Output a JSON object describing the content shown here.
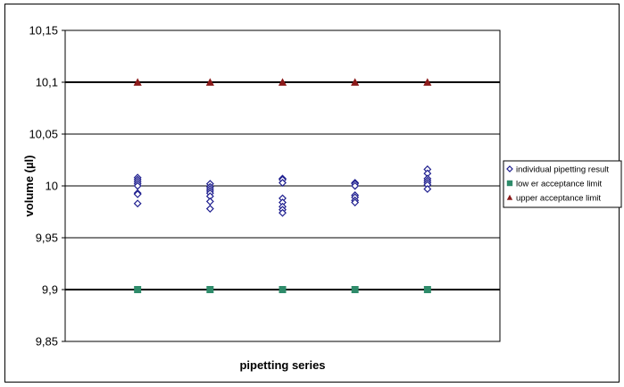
{
  "chart_data": {
    "type": "scatter",
    "title": "",
    "xlabel": "pipetting series",
    "ylabel": "volume (µl)",
    "ylim": [
      9.85,
      10.15
    ],
    "yticks": [
      9.85,
      9.9,
      9.95,
      10,
      10.05,
      10.1,
      10.15
    ],
    "ytick_labels": [
      "9,85",
      "9,9",
      "9,95",
      "10",
      "10,05",
      "10,1",
      "10,15"
    ],
    "grid": true,
    "legend_position": "right",
    "colors": {
      "individual": "#1f1f8f",
      "lower": "#2e8b6a",
      "upper": "#8b1a1a"
    },
    "series": [
      {
        "name": "individual pipetting result",
        "marker": "diamond-open",
        "points": [
          [
            1,
            10.008
          ],
          [
            1,
            10.006
          ],
          [
            1,
            10.004
          ],
          [
            1,
            10.002
          ],
          [
            1,
            10.0
          ],
          [
            1,
            9.993
          ],
          [
            1,
            9.992
          ],
          [
            1,
            9.983
          ],
          [
            2,
            10.002
          ],
          [
            2,
            9.999
          ],
          [
            2,
            9.997
          ],
          [
            2,
            9.995
          ],
          [
            2,
            9.993
          ],
          [
            2,
            9.99
          ],
          [
            2,
            9.985
          ],
          [
            2,
            9.978
          ],
          [
            3,
            10.007
          ],
          [
            3,
            10.006
          ],
          [
            3,
            10.003
          ],
          [
            3,
            9.988
          ],
          [
            3,
            9.984
          ],
          [
            3,
            9.98
          ],
          [
            3,
            9.977
          ],
          [
            3,
            9.974
          ],
          [
            4,
            10.003
          ],
          [
            4,
            10.002
          ],
          [
            4,
            10.0
          ],
          [
            4,
            9.991
          ],
          [
            4,
            9.989
          ],
          [
            4,
            9.986
          ],
          [
            4,
            9.984
          ],
          [
            5,
            10.016
          ],
          [
            5,
            10.012
          ],
          [
            5,
            10.007
          ],
          [
            5,
            10.005
          ],
          [
            5,
            10.003
          ],
          [
            5,
            10.001
          ],
          [
            5,
            9.997
          ]
        ]
      },
      {
        "name": "low er acceptance limit",
        "marker": "square",
        "points": [
          [
            1,
            9.9
          ],
          [
            2,
            9.9
          ],
          [
            3,
            9.9
          ],
          [
            4,
            9.9
          ],
          [
            5,
            9.9
          ]
        ]
      },
      {
        "name": "upper acceptance limit",
        "marker": "triangle",
        "points": [
          [
            1,
            10.1
          ],
          [
            2,
            10.1
          ],
          [
            3,
            10.1
          ],
          [
            4,
            10.1
          ],
          [
            5,
            10.1
          ]
        ]
      }
    ],
    "reference_lines": [
      9.9,
      10.1
    ]
  }
}
